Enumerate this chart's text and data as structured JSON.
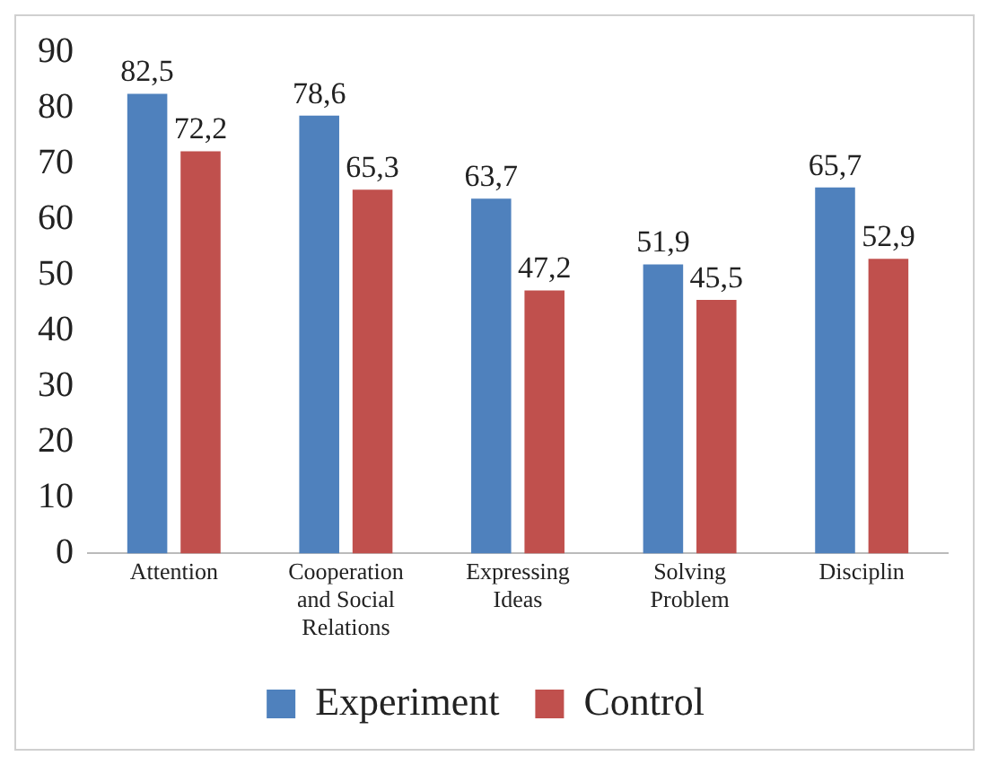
{
  "chart_data": {
    "type": "bar",
    "categories": [
      "Attention",
      "Cooperation and Social Relations",
      "Expressing Ideas",
      "Solving Problem",
      "Disciplin"
    ],
    "series": [
      {
        "name": "Experiment",
        "color": "#4f81bd",
        "values": [
          82.5,
          78.6,
          63.7,
          51.9,
          65.7
        ],
        "value_labels": [
          "82,5",
          "78,6",
          "63,7",
          "51,9",
          "65,7"
        ]
      },
      {
        "name": "Control",
        "color": "#c0504d",
        "values": [
          72.2,
          65.3,
          47.2,
          45.5,
          52.9
        ],
        "value_labels": [
          "72,2",
          "65,3",
          "47,2",
          "45,5",
          "52,9"
        ]
      }
    ],
    "ylim": [
      0,
      90
    ],
    "yticks": [
      0,
      10,
      20,
      30,
      40,
      50,
      60,
      70,
      80,
      90
    ],
    "grid": false,
    "legend": "bottom"
  }
}
